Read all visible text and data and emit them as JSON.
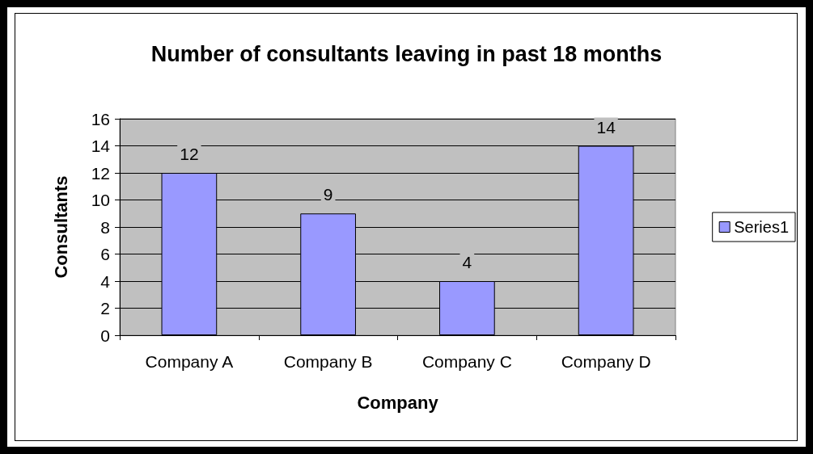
{
  "chart_data": {
    "type": "bar",
    "title": "Number of consultants leaving in past 18 months",
    "xlabel": "Company",
    "ylabel": "Consultants",
    "categories": [
      "Company A",
      "Company B",
      "Company C",
      "Company D"
    ],
    "series": [
      {
        "name": "Series1",
        "color": "#9999ff",
        "values": [
          12,
          9,
          4,
          14
        ]
      }
    ],
    "ylim": [
      0,
      16
    ],
    "yticks": [
      0,
      2,
      4,
      6,
      8,
      10,
      12,
      14,
      16
    ],
    "grid": "y",
    "legend": "right",
    "data_labels": true
  }
}
